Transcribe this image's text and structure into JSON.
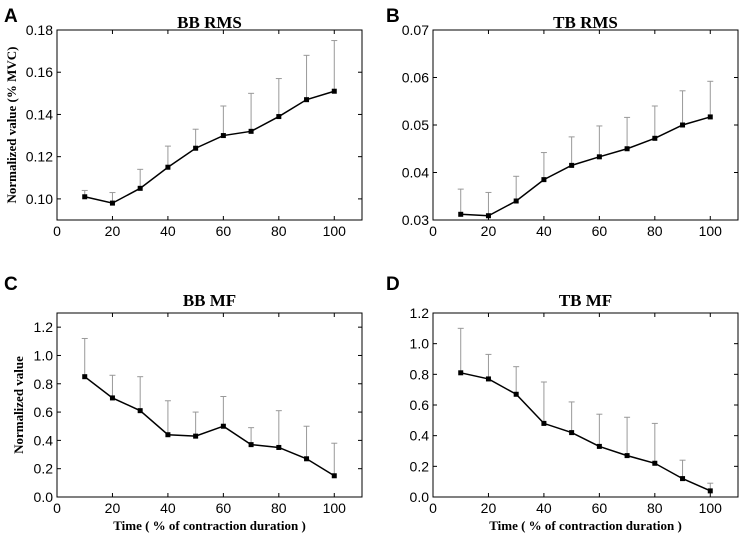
{
  "chart_data": [
    {
      "id": "A",
      "type": "line",
      "letter": "A",
      "title": "BB RMS",
      "xlabel": "",
      "ylabel": "Normalized value (% MVC)",
      "x": [
        10,
        20,
        30,
        40,
        50,
        60,
        70,
        80,
        90,
        100
      ],
      "values": [
        0.101,
        0.098,
        0.105,
        0.115,
        0.124,
        0.13,
        0.132,
        0.139,
        0.147,
        0.151
      ],
      "errors_upper": [
        0.104,
        0.103,
        0.114,
        0.125,
        0.133,
        0.144,
        0.15,
        0.157,
        0.168,
        0.175
      ],
      "xlim": [
        0,
        110
      ],
      "ylim": [
        0.09,
        0.18
      ],
      "xticks": [
        0,
        20,
        40,
        60,
        80,
        100
      ],
      "xtick_labels": [
        "0",
        "20",
        "40",
        "60",
        "80",
        "100"
      ],
      "yticks": [
        0.1,
        0.12,
        0.14,
        0.16,
        0.18
      ],
      "ytick_labels": [
        "0.10",
        "0.12",
        "0.14",
        "0.16",
        "0.18"
      ]
    },
    {
      "id": "B",
      "type": "line",
      "letter": "B",
      "title": "TB RMS",
      "xlabel": "",
      "ylabel": "",
      "x": [
        10,
        20,
        30,
        40,
        50,
        60,
        70,
        80,
        90,
        100
      ],
      "values": [
        0.0312,
        0.0309,
        0.034,
        0.0385,
        0.0415,
        0.0433,
        0.045,
        0.0472,
        0.05,
        0.0517
      ],
      "errors_upper": [
        0.0365,
        0.0358,
        0.0392,
        0.0442,
        0.0475,
        0.0498,
        0.0516,
        0.054,
        0.0572,
        0.0592
      ],
      "xlim": [
        0,
        110
      ],
      "ylim": [
        0.03,
        0.07
      ],
      "xticks": [
        0,
        20,
        40,
        60,
        80,
        100
      ],
      "xtick_labels": [
        "0",
        "20",
        "40",
        "60",
        "80",
        "100"
      ],
      "yticks": [
        0.03,
        0.04,
        0.05,
        0.06,
        0.07
      ],
      "ytick_labels": [
        "0.03",
        "0.04",
        "0.05",
        "0.06",
        "0.07"
      ]
    },
    {
      "id": "C",
      "type": "line",
      "letter": "C",
      "title": "BB MF",
      "xlabel": "Time ( % of contraction duration )",
      "ylabel": "Normalized value",
      "x": [
        10,
        20,
        30,
        40,
        50,
        60,
        70,
        80,
        90,
        100
      ],
      "values": [
        0.85,
        0.7,
        0.61,
        0.44,
        0.43,
        0.5,
        0.37,
        0.35,
        0.27,
        0.15
      ],
      "errors_upper": [
        1.12,
        0.86,
        0.85,
        0.68,
        0.6,
        0.71,
        0.49,
        0.61,
        0.5,
        0.38
      ],
      "xlim": [
        0,
        110
      ],
      "ylim": [
        0.0,
        1.3
      ],
      "xticks": [
        0,
        20,
        40,
        60,
        80,
        100
      ],
      "xtick_labels": [
        "0",
        "20",
        "40",
        "60",
        "80",
        "100"
      ],
      "yticks": [
        0.0,
        0.2,
        0.4,
        0.6,
        0.8,
        1.0,
        1.2
      ],
      "ytick_labels": [
        "0.0",
        "0.2",
        "0.4",
        "0.6",
        "0.8",
        "1.0",
        "1.2"
      ]
    },
    {
      "id": "D",
      "type": "line",
      "letter": "D",
      "title": "TB MF",
      "xlabel": "Time ( % of contraction duration )",
      "ylabel": "",
      "x": [
        10,
        20,
        30,
        40,
        50,
        60,
        70,
        80,
        90,
        100
      ],
      "values": [
        0.81,
        0.77,
        0.67,
        0.48,
        0.42,
        0.33,
        0.27,
        0.22,
        0.12,
        0.04
      ],
      "errors_upper": [
        1.1,
        0.93,
        0.85,
        0.75,
        0.62,
        0.54,
        0.52,
        0.48,
        0.24,
        0.09
      ],
      "xlim": [
        0,
        110
      ],
      "ylim": [
        0.0,
        1.2
      ],
      "xticks": [
        0,
        20,
        40,
        60,
        80,
        100
      ],
      "xtick_labels": [
        "0",
        "20",
        "40",
        "60",
        "80",
        "100"
      ],
      "yticks": [
        0.0,
        0.2,
        0.4,
        0.6,
        0.8,
        1.0,
        1.2
      ],
      "ytick_labels": [
        "0.0",
        "0.2",
        "0.4",
        "0.6",
        "0.8",
        "1.0",
        "1.2"
      ]
    }
  ]
}
